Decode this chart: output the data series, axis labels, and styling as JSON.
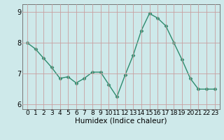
{
  "x": [
    0,
    1,
    2,
    3,
    4,
    5,
    6,
    7,
    8,
    9,
    10,
    11,
    12,
    13,
    14,
    15,
    16,
    17,
    18,
    19,
    20,
    21,
    22,
    23
  ],
  "y": [
    8.0,
    7.8,
    7.5,
    7.2,
    6.85,
    6.9,
    6.7,
    6.85,
    7.05,
    7.05,
    6.65,
    6.25,
    6.95,
    7.6,
    8.4,
    8.95,
    8.8,
    8.55,
    8.0,
    7.45,
    6.85,
    6.5,
    6.5,
    6.5
  ],
  "ylim": [
    5.85,
    9.25
  ],
  "yticks": [
    6,
    7,
    8,
    9
  ],
  "xticks": [
    0,
    1,
    2,
    3,
    4,
    5,
    6,
    7,
    8,
    9,
    10,
    11,
    12,
    13,
    14,
    15,
    16,
    17,
    18,
    19,
    20,
    21,
    22,
    23
  ],
  "xlabel": "Humidex (Indice chaleur)",
  "line_color": "#2e8b6e",
  "marker": "D",
  "marker_size": 2.5,
  "bg_color": "#cee9ea",
  "grid_color": "#c8a0a0",
  "tick_fontsize": 6.5,
  "xlabel_fontsize": 7.5
}
